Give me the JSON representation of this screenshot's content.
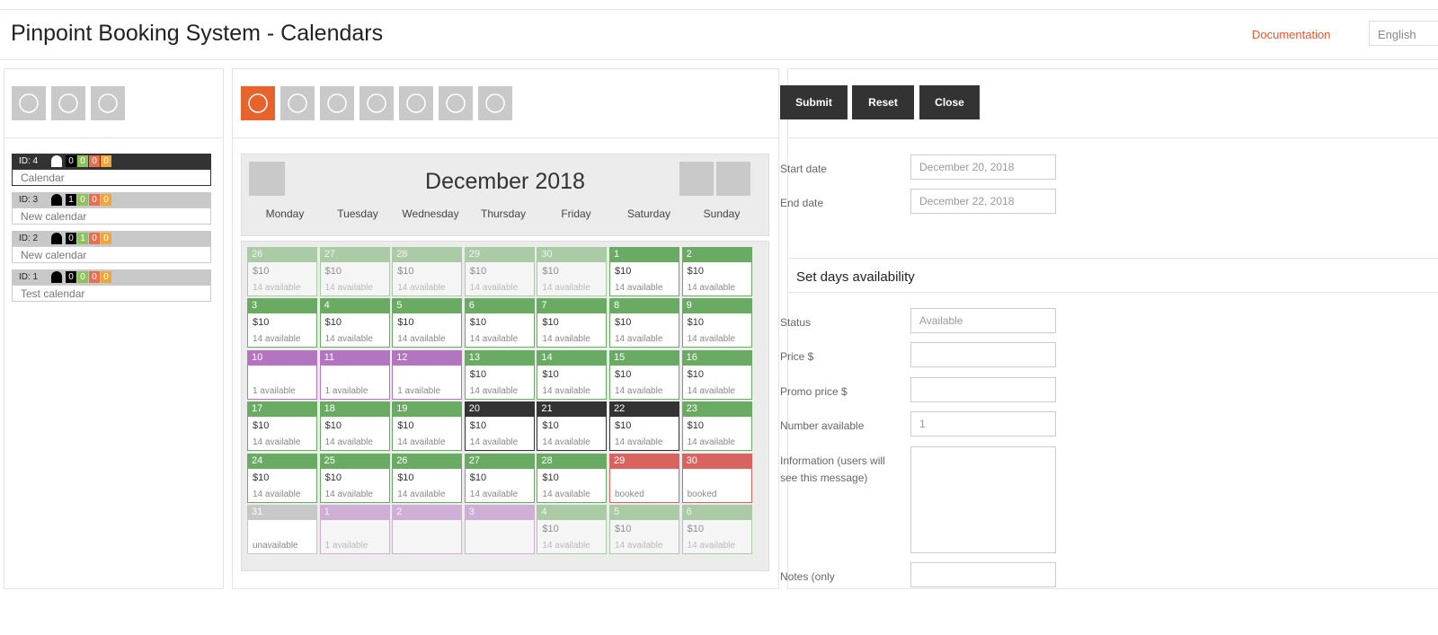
{
  "header": {
    "title": "Pinpoint Booking System - Calendars",
    "documentation": "Documentation",
    "language": "English"
  },
  "calendars": [
    {
      "id": "ID: 4",
      "counts": [
        "0",
        "0",
        "0",
        "0"
      ],
      "name": "Calendar",
      "selected": true
    },
    {
      "id": "ID: 3",
      "counts": [
        "1",
        "0",
        "0",
        "0"
      ],
      "name": "New calendar"
    },
    {
      "id": "ID: 2",
      "counts": [
        "0",
        "1",
        "0",
        "0"
      ],
      "name": "New calendar"
    },
    {
      "id": "ID: 1",
      "counts": [
        "0",
        "0",
        "0",
        "0"
      ],
      "name": "Test calendar"
    }
  ],
  "calendar": {
    "title": "December 2018",
    "weekdays": [
      "Monday",
      "Tuesday",
      "Wednesday",
      "Thursday",
      "Friday",
      "Saturday",
      "Sunday"
    ],
    "days": [
      {
        "day": "26",
        "price": "$10",
        "info": "14 available",
        "color": "#6aab63",
        "faded": true
      },
      {
        "day": "27",
        "price": "$10",
        "info": "14 available",
        "color": "#6aab63",
        "faded": true
      },
      {
        "day": "28",
        "price": "$10",
        "info": "14 available",
        "color": "#6aab63",
        "faded": true
      },
      {
        "day": "29",
        "price": "$10",
        "info": "14 available",
        "color": "#6aab63",
        "faded": true
      },
      {
        "day": "30",
        "price": "$10",
        "info": "14 available",
        "color": "#6aab63",
        "faded": true
      },
      {
        "day": "1",
        "price": "$10",
        "info": "14 available",
        "color": "#6aab63"
      },
      {
        "day": "2",
        "price": "$10",
        "info": "14 available",
        "color": "#6aab63"
      },
      {
        "day": "3",
        "price": "$10",
        "info": "14 available",
        "color": "#6aab63"
      },
      {
        "day": "4",
        "price": "$10",
        "info": "14 available",
        "color": "#6aab63"
      },
      {
        "day": "5",
        "price": "$10",
        "info": "14 available",
        "color": "#6aab63"
      },
      {
        "day": "6",
        "price": "$10",
        "info": "14 available",
        "color": "#6aab63"
      },
      {
        "day": "7",
        "price": "$10",
        "info": "14 available",
        "color": "#6aab63"
      },
      {
        "day": "8",
        "price": "$10",
        "info": "14 available",
        "color": "#6aab63"
      },
      {
        "day": "9",
        "price": "$10",
        "info": "14 available",
        "color": "#6aab63"
      },
      {
        "day": "10",
        "info": "1 available",
        "color": "#b374c0"
      },
      {
        "day": "11",
        "info": "1 available",
        "color": "#b374c0"
      },
      {
        "day": "12",
        "info": "1 available",
        "color": "#b374c0"
      },
      {
        "day": "13",
        "price": "$10",
        "info": "14 available",
        "color": "#6aab63"
      },
      {
        "day": "14",
        "price": "$10",
        "info": "14 available",
        "color": "#6aab63"
      },
      {
        "day": "15",
        "price": "$10",
        "info": "14 available",
        "color": "#6aab63"
      },
      {
        "day": "16",
        "price": "$10",
        "info": "14 available",
        "color": "#6aab63"
      },
      {
        "day": "17",
        "price": "$10",
        "info": "14 available",
        "color": "#6aab63"
      },
      {
        "day": "18",
        "price": "$10",
        "info": "14 available",
        "color": "#6aab63"
      },
      {
        "day": "19",
        "price": "$10",
        "info": "14 available",
        "color": "#6aab63"
      },
      {
        "day": "20",
        "price": "$10",
        "info": "14 available",
        "color": "#333333"
      },
      {
        "day": "21",
        "price": "$10",
        "info": "14 available",
        "color": "#333333"
      },
      {
        "day": "22",
        "price": "$10",
        "info": "14 available",
        "color": "#333333"
      },
      {
        "day": "23",
        "price": "$10",
        "info": "14 available",
        "color": "#6aab63"
      },
      {
        "day": "24",
        "price": "$10",
        "info": "14 available",
        "color": "#6aab63"
      },
      {
        "day": "25",
        "price": "$10",
        "info": "14 available",
        "color": "#6aab63"
      },
      {
        "day": "26",
        "price": "$10",
        "info": "14 available",
        "color": "#6aab63"
      },
      {
        "day": "27",
        "price": "$10",
        "info": "14 available",
        "color": "#6aab63"
      },
      {
        "day": "28",
        "price": "$10",
        "info": "14 available",
        "color": "#6aab63"
      },
      {
        "day": "29",
        "info": "booked",
        "color": "#d9645f"
      },
      {
        "day": "30",
        "info": "booked",
        "color": "#d9645f"
      },
      {
        "day": "31",
        "info": "unavailable",
        "color": "#c8c8c8"
      },
      {
        "day": "1",
        "info": "1 available",
        "color": "#b374c0",
        "faded": true
      },
      {
        "day": "2",
        "color": "#b374c0",
        "faded": true
      },
      {
        "day": "3",
        "color": "#b374c0",
        "faded": true
      },
      {
        "day": "4",
        "price": "$10",
        "info": "14 available",
        "color": "#6aab63",
        "faded": true
      },
      {
        "day": "5",
        "price": "$10",
        "info": "14 available",
        "color": "#6aab63",
        "faded": true
      },
      {
        "day": "6",
        "price": "$10",
        "info": "14 available",
        "color": "#6aab63",
        "faded": true
      }
    ]
  },
  "form": {
    "buttons": [
      "Submit",
      "Reset",
      "Close"
    ],
    "dates": [
      {
        "label": "Start date",
        "value": "December 20, 2018"
      },
      {
        "label": "End date",
        "value": "December 22, 2018"
      }
    ],
    "section": "Set days availability",
    "fields": [
      {
        "label": "Status",
        "value": "Available"
      },
      {
        "label": "Price $"
      },
      {
        "label": "Promo price $"
      },
      {
        "label": "Number available",
        "value": "1"
      },
      {
        "label": "Information (users will see this message)"
      },
      {
        "label": "Notes (only"
      }
    ]
  }
}
